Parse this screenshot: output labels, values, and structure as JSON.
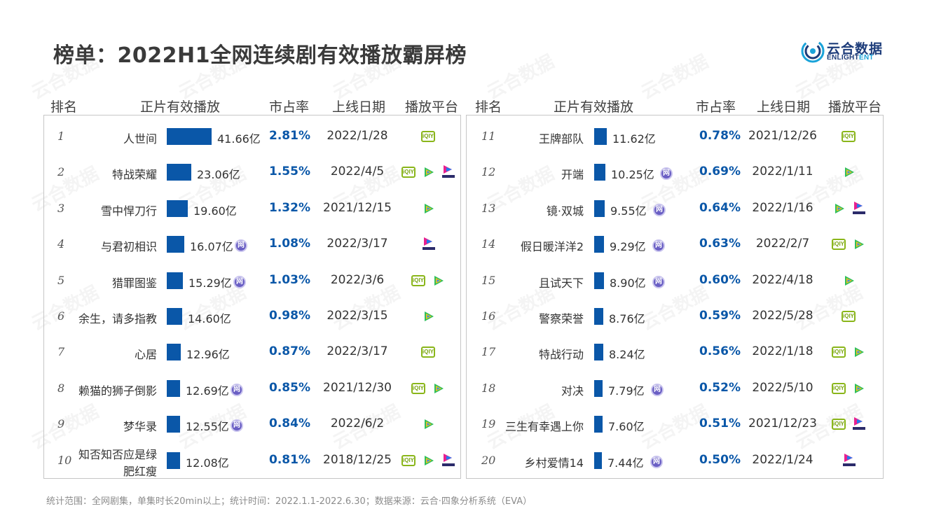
{
  "title": "榜单：2022H1全网连续剧有效播放霸屏榜",
  "logo": {
    "cn": "云合数据",
    "en_a": "ENLIGHT",
    "en_b": "ENT"
  },
  "watermark": "云合数据",
  "headers": {
    "rank": "排名",
    "views": "正片有效播放",
    "share": "市占率",
    "date": "上线日期",
    "platform": "播放平台"
  },
  "footnote": "统计范围：全网剧集，单集时长20min以上；统计时间：2022.1.1-2022.6.30；数据来源：云合·四象分析系统（EVA）",
  "colors": {
    "bar": "#0a57a8",
    "share": "#0a57a8"
  },
  "chart_data": {
    "type": "table",
    "unit": "亿",
    "rows": [
      {
        "rank": "1",
        "name": "人世间",
        "views": 41.66,
        "views_label": "41.66亿",
        "wang": false,
        "share": "2.81%",
        "date": "2022/1/28",
        "platforms": [
          "iqiyi"
        ]
      },
      {
        "rank": "2",
        "name": "特战荣耀",
        "views": 23.06,
        "views_label": "23.06亿",
        "wang": false,
        "share": "1.55%",
        "date": "2022/4/5",
        "platforms": [
          "iqiyi",
          "tencent",
          "youku"
        ]
      },
      {
        "rank": "3",
        "name": "雪中悍刀行",
        "views": 19.6,
        "views_label": "19.60亿",
        "wang": false,
        "share": "1.32%",
        "date": "2021/12/15",
        "platforms": [
          "tencent"
        ]
      },
      {
        "rank": "4",
        "name": "与君初相识",
        "views": 16.07,
        "views_label": "16.07亿",
        "wang": true,
        "share": "1.08%",
        "date": "2022/3/17",
        "platforms": [
          "youku"
        ]
      },
      {
        "rank": "5",
        "name": "猎罪图鉴",
        "views": 15.29,
        "views_label": "15.29亿",
        "wang": true,
        "share": "1.03%",
        "date": "2022/3/6",
        "platforms": [
          "iqiyi",
          "tencent"
        ]
      },
      {
        "rank": "6",
        "name": "余生，请多指教",
        "views": 14.6,
        "views_label": "14.60亿",
        "wang": false,
        "share": "0.98%",
        "date": "2022/3/15",
        "platforms": [
          "tencent"
        ]
      },
      {
        "rank": "7",
        "name": "心居",
        "views": 12.96,
        "views_label": "12.96亿",
        "wang": false,
        "share": "0.87%",
        "date": "2022/3/17",
        "platforms": [
          "iqiyi"
        ]
      },
      {
        "rank": "8",
        "name": "赖猫的狮子倒影",
        "views": 12.69,
        "views_label": "12.69亿",
        "wang": true,
        "share": "0.85%",
        "date": "2021/12/30",
        "platforms": [
          "iqiyi",
          "tencent"
        ]
      },
      {
        "rank": "9",
        "name": "梦华录",
        "views": 12.55,
        "views_label": "12.55亿",
        "wang": true,
        "share": "0.84%",
        "date": "2022/6/2",
        "platforms": [
          "tencent"
        ]
      },
      {
        "rank": "10",
        "name": "知否知否应是绿肥红瘦",
        "name_l1": "知否知否应是绿",
        "name_l2": "肥红瘦",
        "views": 12.08,
        "views_label": "12.08亿",
        "wang": false,
        "share": "0.81%",
        "date": "2018/12/25",
        "platforms": [
          "iqiyi",
          "tencent",
          "youku"
        ]
      },
      {
        "rank": "11",
        "name": "王牌部队",
        "views": 11.62,
        "views_label": "11.62亿",
        "wang": false,
        "share": "0.78%",
        "date": "2021/12/26",
        "platforms": [
          "iqiyi"
        ]
      },
      {
        "rank": "12",
        "name": "开端",
        "views": 10.25,
        "views_label": "10.25亿",
        "wang": true,
        "share": "0.69%",
        "date": "2022/1/11",
        "platforms": [
          "tencent"
        ]
      },
      {
        "rank": "13",
        "name": "镜·双城",
        "views": 9.55,
        "views_label": "9.55亿",
        "wang": true,
        "share": "0.64%",
        "date": "2022/1/16",
        "platforms": [
          "tencent",
          "youku"
        ]
      },
      {
        "rank": "14",
        "name": "假日暖洋洋2",
        "views": 9.29,
        "views_label": "9.29亿",
        "wang": true,
        "share": "0.63%",
        "date": "2022/2/7",
        "platforms": [
          "iqiyi",
          "tencent"
        ]
      },
      {
        "rank": "15",
        "name": "且试天下",
        "views": 8.9,
        "views_label": "8.90亿",
        "wang": true,
        "share": "0.60%",
        "date": "2022/4/18",
        "platforms": [
          "tencent"
        ]
      },
      {
        "rank": "16",
        "name": "警察荣誉",
        "views": 8.76,
        "views_label": "8.76亿",
        "wang": false,
        "share": "0.59%",
        "date": "2022/5/28",
        "platforms": [
          "iqiyi"
        ]
      },
      {
        "rank": "17",
        "name": "特战行动",
        "views": 8.24,
        "views_label": "8.24亿",
        "wang": false,
        "share": "0.56%",
        "date": "2022/1/18",
        "platforms": [
          "iqiyi",
          "tencent"
        ]
      },
      {
        "rank": "18",
        "name": "对决",
        "views": 7.79,
        "views_label": "7.79亿",
        "wang": true,
        "share": "0.52%",
        "date": "2022/5/10",
        "platforms": [
          "iqiyi",
          "tencent"
        ]
      },
      {
        "rank": "19",
        "name": "三生有幸遇上你",
        "views": 7.6,
        "views_label": "7.60亿",
        "wang": false,
        "share": "0.51%",
        "date": "2021/12/23",
        "platforms": [
          "iqiyi",
          "youku"
        ]
      },
      {
        "rank": "20",
        "name": "乡村爱情14",
        "views": 7.44,
        "views_label": "7.44亿",
        "wang": true,
        "share": "0.50%",
        "date": "2022/1/24",
        "platforms": [
          "youku"
        ]
      }
    ]
  }
}
